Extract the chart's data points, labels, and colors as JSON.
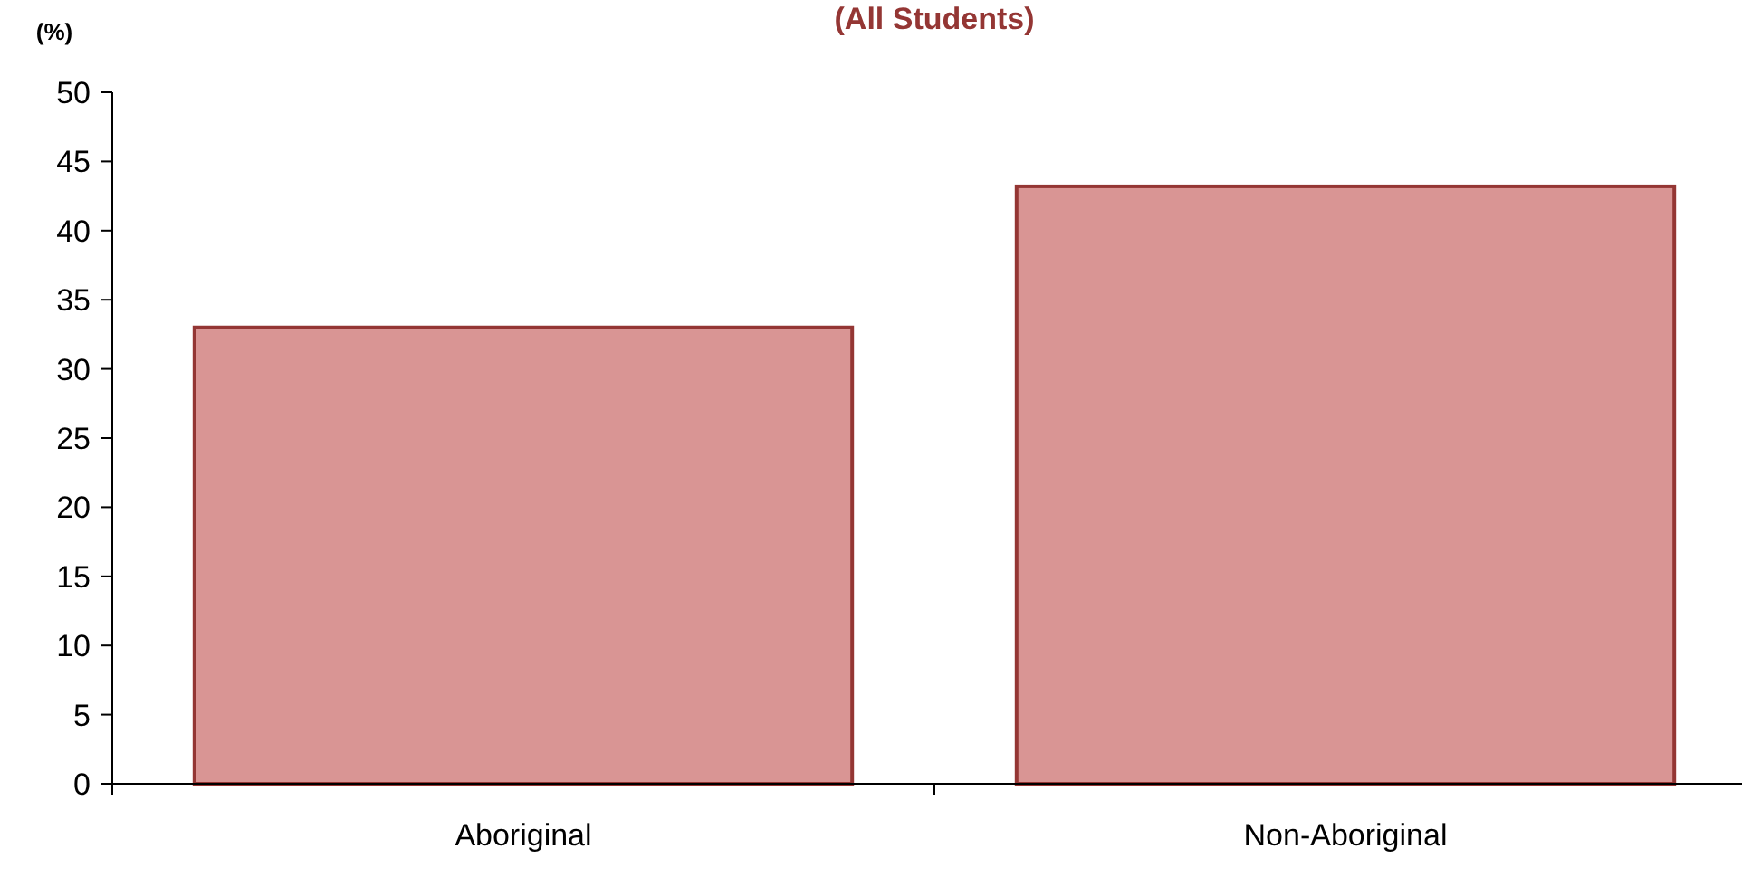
{
  "chart_data": {
    "type": "bar",
    "title": "(All Students)",
    "ylabel": "(%)",
    "categories": [
      "Aboriginal",
      "Non-Aboriginal"
    ],
    "values": [
      33,
      43.2
    ],
    "color": "#d99594",
    "ylim": [
      0,
      50
    ],
    "yticks": [
      0,
      5,
      10,
      15,
      20,
      25,
      30,
      35,
      40,
      45,
      50
    ],
    "grid": false
  }
}
